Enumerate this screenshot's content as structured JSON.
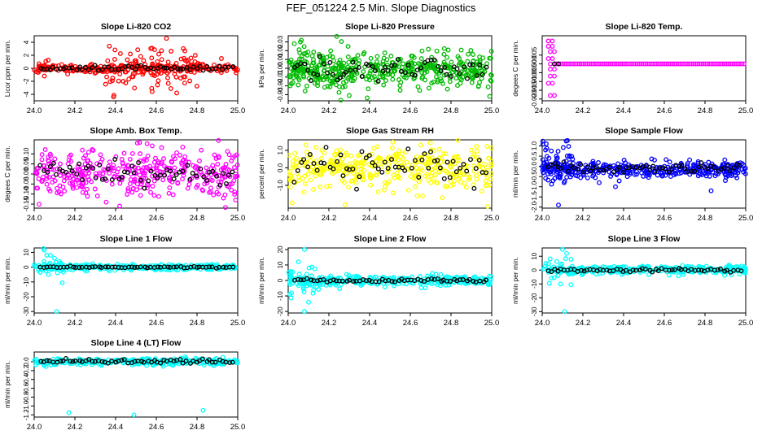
{
  "figure_title": "FEF_051224  2.5 Min. Slope Diagnostics",
  "colors": {
    "black": "#000000",
    "axis": "#000000"
  },
  "chart_data": [
    {
      "type": "scatter",
      "title": "Slope Li-820 CO2",
      "xlabel": "",
      "ylabel": "Licor ppm per min.",
      "xlim": [
        24.0,
        25.0
      ],
      "ylim": [
        -5,
        5
      ],
      "xticks": [
        "24.0",
        "24.2",
        "24.4",
        "24.6",
        "24.8",
        "25.0"
      ],
      "yticks": [
        -4,
        -2,
        0,
        2,
        4
      ],
      "ytick_labels": [
        "-4",
        "-2",
        "0",
        "2",
        "4"
      ],
      "series_color": "#ff0000",
      "seed": 11,
      "dense": {
        "center": 0,
        "spread": 0.35,
        "count": 260
      },
      "wide": {
        "x_from": 24.35,
        "x_to": 24.8,
        "spread": 1.8,
        "count": 90
      },
      "outliers": [
        [
          24.39,
          -4.4
        ],
        [
          24.65,
          4.6
        ],
        [
          24.7,
          -3.8
        ],
        [
          24.05,
          -1.2
        ],
        [
          24.92,
          1.5
        ]
      ],
      "black": {
        "center": 0,
        "spread": 0.2,
        "count": 60
      }
    },
    {
      "type": "scatter",
      "title": "Slope Li-820 Pressure",
      "xlabel": "",
      "ylabel": "kPa per min.",
      "xlim": [
        24.0,
        25.0
      ],
      "ylim": [
        -0.037,
        0.037
      ],
      "xticks": [
        "24.0",
        "24.2",
        "24.4",
        "24.6",
        "24.8",
        "25.0"
      ],
      "yticks": [
        -0.03,
        -0.02,
        -0.01,
        0.0,
        0.01,
        0.02,
        0.03
      ],
      "ytick_labels": [
        "-0.03",
        "-0.02",
        "-0.01",
        "0.00",
        "0.01",
        "0.02",
        "0.03"
      ],
      "series_color": "#00bb00",
      "seed": 23,
      "dense": {
        "center": -0.001,
        "spread": 0.009,
        "count": 420
      },
      "wide": {
        "x_from": 24.0,
        "x_to": 24.3,
        "spread": 0.014,
        "count": 60
      },
      "outliers": [
        [
          24.03,
          0.028
        ],
        [
          24.06,
          0.03
        ],
        [
          24.3,
          -0.031
        ],
        [
          24.99,
          -0.032
        ],
        [
          24.55,
          -0.025
        ]
      ],
      "black": {
        "center": 0.0,
        "spread": 0.007,
        "count": 60
      }
    },
    {
      "type": "scatter",
      "title": "Slope Li-820 Temp.",
      "xlabel": "",
      "ylabel": "degees C per min.",
      "xlim": [
        24.0,
        25.0
      ],
      "ylim": [
        -0.021,
        0.016
      ],
      "xticks": [
        "24.0",
        "24.2",
        "24.4",
        "24.6",
        "24.8",
        "25.0"
      ],
      "yticks": [
        -0.02,
        -0.015,
        -0.01,
        -0.005,
        0.0,
        0.005
      ],
      "ytick_labels": [
        "-0.020",
        "-0.015",
        "-0.010",
        "-0.005",
        "0.000",
        "0.005"
      ],
      "series_color": "#ff00ff",
      "seed": 37,
      "line_value": 0.0,
      "line_from": 24.07,
      "early": [
        [
          24.03,
          0.013
        ],
        [
          24.05,
          0.013
        ],
        [
          24.03,
          0.01
        ],
        [
          24.05,
          0.01
        ],
        [
          24.04,
          0.007
        ],
        [
          24.06,
          0.007
        ],
        [
          24.03,
          0.003
        ],
        [
          24.05,
          0.003
        ],
        [
          24.04,
          -0.003
        ],
        [
          24.06,
          -0.003
        ],
        [
          24.04,
          -0.007
        ],
        [
          24.06,
          -0.007
        ],
        [
          24.03,
          -0.011
        ],
        [
          24.05,
          -0.011
        ],
        [
          24.04,
          -0.018
        ],
        [
          24.06,
          -0.018
        ],
        [
          24.04,
          0.0
        ],
        [
          24.06,
          0.0
        ]
      ],
      "black_points": [
        [
          24.06,
          0.0
        ],
        [
          24.08,
          0.0
        ]
      ]
    },
    {
      "type": "scatter",
      "title": "Slope Amb. Box Temp.",
      "xlabel": "",
      "ylabel": "degees C per min.",
      "xlim": [
        24.0,
        25.0
      ],
      "ylim": [
        -0.17,
        0.17
      ],
      "xticks": [
        "24.0",
        "24.2",
        "24.4",
        "24.6",
        "24.8",
        "25.0"
      ],
      "yticks": [
        -0.15,
        -0.1,
        -0.05,
        0.0,
        0.05,
        0.1
      ],
      "ytick_labels": [
        "-0.15",
        "-0.10",
        "-0.05",
        "0.00",
        "0.05",
        "0.10"
      ],
      "series_color": "#ff00ff",
      "seed": 41,
      "dense": {
        "center": 0.0,
        "spread": 0.06,
        "count": 380
      },
      "outliers": [
        [
          24.42,
          -0.16
        ],
        [
          24.58,
          0.14
        ],
        [
          24.93,
          -0.12
        ],
        [
          24.99,
          -0.13
        ]
      ],
      "black": {
        "center": 0.0,
        "spread": 0.03,
        "count": 60
      }
    },
    {
      "type": "scatter",
      "title": "Slope Gas Stream RH",
      "xlabel": "",
      "ylabel": "percent per min.",
      "xlim": [
        24.0,
        25.0
      ],
      "ylim": [
        -2.3,
        1.6
      ],
      "xticks": [
        "24.0",
        "24.2",
        "24.4",
        "24.6",
        "24.8",
        "25.0"
      ],
      "yticks": [
        -1.0,
        0.0,
        1.0
      ],
      "ytick_labels": [
        "-1.0",
        "0.0",
        "1.0"
      ],
      "series_color": "#ffff00",
      "seed": 53,
      "dense": {
        "center": 0.0,
        "spread": 0.6,
        "count": 380
      },
      "outliers": [
        [
          24.28,
          -2.1
        ],
        [
          24.66,
          -1.6
        ],
        [
          24.98,
          -2.2
        ],
        [
          24.02,
          -2.0
        ]
      ],
      "black": {
        "center": 0.1,
        "spread": 0.5,
        "count": 60
      }
    },
    {
      "type": "scatter",
      "title": "Slope Sample Flow",
      "xlabel": "",
      "ylabel": "ml/min per min.",
      "xlim": [
        24.0,
        25.0
      ],
      "ylim": [
        -2.05,
        1.3
      ],
      "xticks": [
        "24.0",
        "24.2",
        "24.4",
        "24.6",
        "24.8",
        "25.0"
      ],
      "yticks": [
        -2.0,
        -1.5,
        -1.0,
        -0.5,
        0.0,
        0.5,
        1.0
      ],
      "ytick_labels": [
        "-2.0",
        "-1.5",
        "-1.0",
        "-0.5",
        "0.0",
        "0.5",
        "1.0"
      ],
      "series_color": "#0000ff",
      "seed": 67,
      "dense": {
        "center": -0.15,
        "spread": 0.18,
        "count": 380
      },
      "wide": {
        "x_from": 24.0,
        "x_to": 24.15,
        "spread": 0.6,
        "count": 40
      },
      "outliers": [
        [
          24.02,
          1.1
        ],
        [
          24.08,
          -1.9
        ],
        [
          24.28,
          -0.8
        ],
        [
          24.36,
          -1.0
        ],
        [
          24.83,
          -1.2
        ],
        [
          24.9,
          -0.7
        ]
      ],
      "black": {
        "center": -0.1,
        "spread": 0.12,
        "count": 60
      }
    },
    {
      "type": "scatter",
      "title": "Slope Line 1 Flow",
      "xlabel": "",
      "ylabel": "ml/min per min.",
      "xlim": [
        24.0,
        25.0
      ],
      "ylim": [
        -31,
        13
      ],
      "xticks": [
        "24.0",
        "24.2",
        "24.4",
        "24.6",
        "24.8",
        "25.0"
      ],
      "yticks": [
        -30,
        -20,
        -10,
        0,
        10
      ],
      "ytick_labels": [
        "-30",
        "-20",
        "-10",
        "0",
        "10"
      ],
      "series_color": "#00ffff",
      "seed": 71,
      "dense": {
        "center": 0.0,
        "spread": 1.0,
        "count": 300
      },
      "wide": {
        "x_from": 24.02,
        "x_to": 24.15,
        "spread": 5.0,
        "count": 18
      },
      "outliers": [
        [
          24.05,
          11.5
        ],
        [
          24.08,
          8
        ],
        [
          24.11,
          -30
        ],
        [
          24.1,
          6
        ],
        [
          24.07,
          -5
        ]
      ],
      "black": {
        "center": 0.0,
        "spread": 0.3,
        "count": 60
      }
    },
    {
      "type": "scatter",
      "title": "Slope Line 2 Flow",
      "xlabel": "",
      "ylabel": "ml/min per min.",
      "xlim": [
        24.0,
        25.0
      ],
      "ylim": [
        -21,
        21
      ],
      "xticks": [
        "24.0",
        "24.2",
        "24.4",
        "24.6",
        "24.8",
        "25.0"
      ],
      "yticks": [
        -20,
        -10,
        0,
        10,
        20
      ],
      "ytick_labels": [
        "-20",
        "-10",
        "0",
        "10",
        "20"
      ],
      "series_color": "#00ffff",
      "seed": 83,
      "dense": {
        "center": 0.0,
        "spread": 1.6,
        "count": 320
      },
      "wide": {
        "x_from": 24.0,
        "x_to": 24.15,
        "spread": 6.0,
        "count": 30
      },
      "outliers": [
        [
          24.08,
          20
        ],
        [
          24.08,
          -20
        ],
        [
          24.05,
          12
        ],
        [
          24.1,
          -14
        ]
      ],
      "black": {
        "center": 0.0,
        "spread": 0.6,
        "count": 60
      }
    },
    {
      "type": "scatter",
      "title": "Slope Line 3 Flow",
      "xlabel": "",
      "ylabel": "ml/min per min.",
      "xlim": [
        24.0,
        25.0
      ],
      "ylim": [
        -31,
        16
      ],
      "xticks": [
        "24.0",
        "24.2",
        "24.4",
        "24.6",
        "24.8",
        "25.0"
      ],
      "yticks": [
        -30,
        -20,
        -10,
        0,
        10
      ],
      "ytick_labels": [
        "-30",
        "-20",
        "-10",
        "0",
        "10"
      ],
      "series_color": "#00ffff",
      "seed": 97,
      "dense": {
        "center": 0.0,
        "spread": 1.6,
        "count": 320
      },
      "wide": {
        "x_from": 24.03,
        "x_to": 24.15,
        "spread": 6.0,
        "count": 22
      },
      "outliers": [
        [
          24.1,
          15
        ],
        [
          24.11,
          -30
        ],
        [
          24.12,
          12
        ],
        [
          24.09,
          -10
        ]
      ],
      "black": {
        "center": 0.0,
        "spread": 0.6,
        "count": 60
      }
    },
    {
      "type": "scatter",
      "title": "Slope Line 4 (LT) Flow",
      "xlabel": "",
      "ylabel": "ml/min per min.",
      "xlim": [
        24.0,
        25.0
      ],
      "ylim": [
        -1.25,
        0.22
      ],
      "xticks": [
        "24.0",
        "24.2",
        "24.4",
        "24.6",
        "24.8",
        "25.0"
      ],
      "yticks": [
        -1.2,
        -1.0,
        -0.8,
        -0.6,
        -0.4,
        -0.2,
        0.0
      ],
      "ytick_labels": [
        "-1.2",
        "-1.0",
        "-0.8",
        "-0.6",
        "-0.4",
        "-0.2",
        "0.0"
      ],
      "series_color": "#00ffff",
      "seed": 103,
      "dense": {
        "center": 0.0,
        "spread": 0.04,
        "count": 320
      },
      "outliers": [
        [
          24.17,
          -1.15
        ],
        [
          24.49,
          -1.2
        ],
        [
          24.83,
          -1.1
        ],
        [
          24.05,
          -0.08
        ],
        [
          24.6,
          -0.05
        ]
      ],
      "black": {
        "center": 0.01,
        "spread": 0.03,
        "count": 60
      }
    }
  ]
}
